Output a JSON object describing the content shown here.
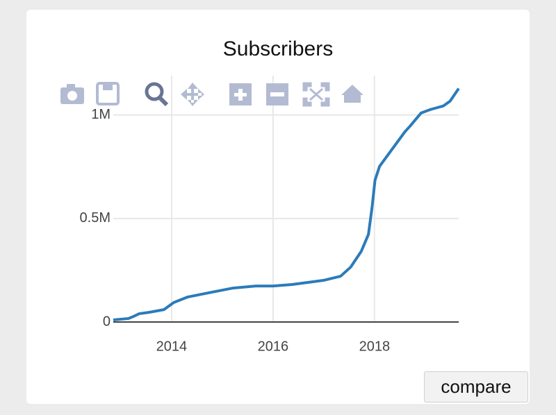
{
  "chart_data": {
    "type": "line",
    "title": "Subscribers",
    "series": [
      {
        "name": "Subscribers",
        "color": "#2b7bba",
        "x": [
          2012.85,
          2013.15,
          2013.25,
          2013.36,
          2013.56,
          2013.85,
          2014.04,
          2014.32,
          2014.73,
          2015.21,
          2015.66,
          2016.0,
          2016.37,
          2016.99,
          2017.33,
          2017.53,
          2017.74,
          2017.88,
          2017.95,
          2018.01,
          2018.1,
          2018.22,
          2018.6,
          2018.7,
          2018.92,
          2019.11,
          2019.36,
          2019.49,
          2019.66
        ],
        "values": [
          10000,
          17000,
          27000,
          40000,
          47000,
          60000,
          94000,
          121000,
          141000,
          164000,
          174000,
          174000,
          181000,
          201000,
          221000,
          265000,
          342000,
          423000,
          550000,
          685000,
          752000,
          792000,
          919000,
          946000,
          1010000,
          1027000,
          1044000,
          1067000,
          1128000
        ]
      }
    ],
    "xlim": [
      2012.85,
      2019.66
    ],
    "xticks": [
      2014,
      2016,
      2018
    ],
    "ylim": [
      0,
      1190000
    ],
    "yticks": [
      0,
      {
        "value": 500000,
        "label": "0.5M"
      },
      {
        "value": 1000000,
        "label": "1M"
      }
    ],
    "grid": true
  },
  "button": "compare"
}
